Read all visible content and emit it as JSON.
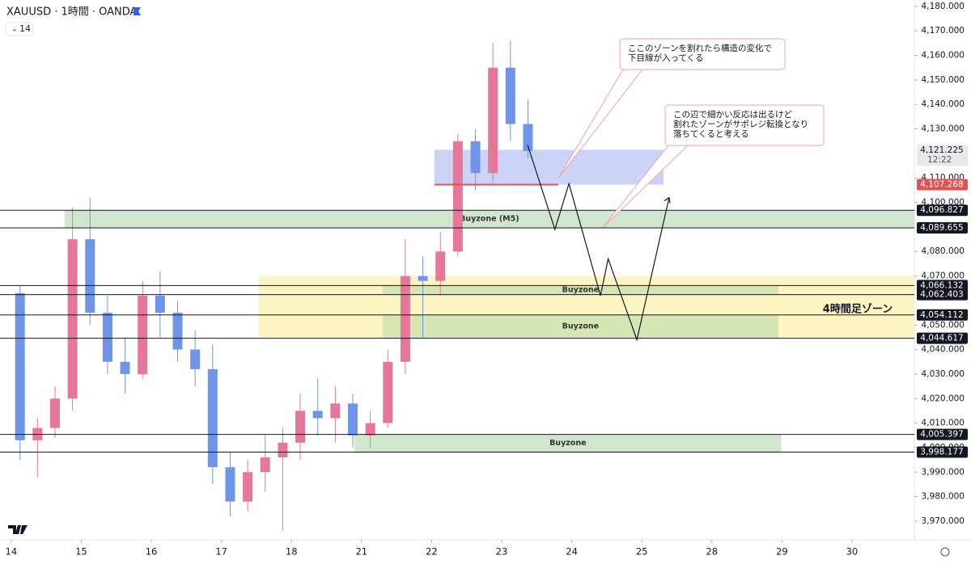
{
  "chart_data": {
    "type": "candlestick",
    "title": "XAUUSD · 1時間 · OANDA",
    "input_label": "14",
    "up_color": "#e5779a",
    "down_color": "#6f95e8",
    "x": [
      0.125,
      0.375,
      0.625,
      0.875,
      1.125,
      1.375,
      1.625,
      1.875,
      2.125,
      2.375,
      2.625,
      2.875,
      3.125,
      3.375,
      3.625,
      3.875,
      4.125,
      4.375,
      4.625,
      4.875,
      5.125,
      5.375,
      5.625,
      5.875,
      6.125,
      6.375,
      6.625,
      6.875,
      7.125,
      7.375
    ],
    "open": [
      4063,
      4003,
      4008,
      4020,
      4085,
      4055,
      4035,
      4030,
      4062,
      4055,
      4040,
      4032,
      3992,
      3978,
      3990,
      3996,
      4002,
      4015,
      4012,
      4018,
      4005,
      4010,
      4035,
      4070,
      4068,
      4080,
      4125,
      4112,
      4155,
      4132
    ],
    "high": [
      4066,
      4012,
      4025,
      4098,
      4102,
      4062,
      4045,
      4068,
      4072,
      4060,
      4048,
      4042,
      3998,
      3995,
      4005,
      4008,
      4022,
      4028,
      4025,
      4022,
      4015,
      4040,
      4085,
      4078,
      4088,
      4128,
      4130,
      4165,
      4166,
      4142
    ],
    "low": [
      3995,
      3988,
      4004,
      4015,
      4050,
      4030,
      4022,
      4028,
      4045,
      4035,
      4025,
      3985,
      3972,
      3974,
      3982,
      3966,
      3995,
      4005,
      4002,
      4000,
      4000,
      4008,
      4030,
      4045,
      4062,
      4078,
      4105,
      4108,
      4125,
      4118
    ],
    "close": [
      4003,
      4008,
      4020,
      4085,
      4055,
      4035,
      4030,
      4062,
      4055,
      4040,
      4032,
      3992,
      3978,
      3990,
      3996,
      4002,
      4015,
      4012,
      4018,
      4005,
      4010,
      4035,
      4070,
      4068,
      4080,
      4125,
      4112,
      4155,
      4132,
      4121
    ],
    "xlim": [
      -0.16,
      12.89
    ],
    "ylim": [
      3962.4,
      4182.6
    ],
    "xticks": [
      {
        "value": 0,
        "label": "14"
      },
      {
        "value": 1,
        "label": "15"
      },
      {
        "value": 2,
        "label": "16"
      },
      {
        "value": 3,
        "label": "17"
      },
      {
        "value": 4,
        "label": "18"
      },
      {
        "value": 5,
        "label": "21"
      },
      {
        "value": 6,
        "label": "22"
      },
      {
        "value": 7,
        "label": "23"
      },
      {
        "value": 8,
        "label": "24"
      },
      {
        "value": 9,
        "label": "25"
      },
      {
        "value": 10,
        "label": "28"
      },
      {
        "value": 11,
        "label": "29"
      },
      {
        "value": 12,
        "label": "30"
      }
    ],
    "yticks": [
      {
        "value": 4180,
        "label": "4,180.000"
      },
      {
        "value": 4170,
        "label": "4,170.000"
      },
      {
        "value": 4160,
        "label": "4,160.000"
      },
      {
        "value": 4150,
        "label": "4,150.000"
      },
      {
        "value": 4140,
        "label": "4,140.000"
      },
      {
        "value": 4130,
        "label": "4,130.000"
      },
      {
        "value": 4110,
        "label": "4,110.000"
      },
      {
        "value": 4100,
        "label": "4,100.000"
      },
      {
        "value": 4080,
        "label": "4,080.000"
      },
      {
        "value": 4070,
        "label": "4,070.000"
      },
      {
        "value": 4050,
        "label": "4,050.000"
      },
      {
        "value": 4040,
        "label": "4,040.000"
      },
      {
        "value": 4030,
        "label": "4,030.000"
      },
      {
        "value": 4020,
        "label": "4,020.000"
      },
      {
        "value": 4010,
        "label": "4,010.000"
      },
      {
        "value": 4000,
        "label": "4,000.000"
      },
      {
        "value": 3990,
        "label": "3,990.000"
      },
      {
        "value": 3980,
        "label": "3,980.000"
      },
      {
        "value": 3970,
        "label": "3,970.000"
      }
    ],
    "zones": [
      {
        "color": "#fbf3b8",
        "x_start": 3.53,
        "x_end": 12.89,
        "top": 4070,
        "bottom": 4044.617
      },
      {
        "name": "Buyzone (M5)",
        "color": "#c9e3c4",
        "x_start": 0.76,
        "x_end": 12.89,
        "top": 4096.827,
        "bottom": 4089.655
      },
      {
        "name": "Buyzone",
        "color": "#cfe3b0",
        "x_start": 5.3,
        "x_end": 10.95,
        "top": 4066.132,
        "bottom": 4062.403
      },
      {
        "name": "Buyzone",
        "color": "#cfe3b0",
        "x_start": 5.3,
        "x_end": 10.95,
        "top": 4054.112,
        "bottom": 4044.617
      },
      {
        "name": "Buyzone",
        "color": "#c9e3c4",
        "x_start": 4.9,
        "x_end": 10.99,
        "top": 4005.397,
        "bottom": 3998.177
      },
      {
        "color": "#c2ccf5",
        "x_start": 6.04,
        "x_end": 9.31,
        "top": 4121.5,
        "bottom": 4107.268
      }
    ],
    "levels": [
      {
        "value": 4096.827,
        "label": "4,096.827"
      },
      {
        "value": 4089.655,
        "label": "4,089.655"
      },
      {
        "value": 4066.132,
        "label": "4,066.132"
      },
      {
        "value": 4062.403,
        "label": "4,062.403"
      },
      {
        "value": 4054.112,
        "label": "4,054.112"
      },
      {
        "value": 4044.617,
        "label": "4,044.617"
      },
      {
        "value": 4005.397,
        "label": "4,005.397"
      },
      {
        "value": 3998.177,
        "label": "3,998.177"
      }
    ],
    "support_line": {
      "value": 4107.268,
      "label": "4,107.268",
      "color": "#e05252",
      "x_start": 6.04,
      "x_end": 7.81
    },
    "last_price": {
      "value": 4121.225,
      "label": "4,121.225",
      "countdown": "12:22"
    },
    "projection": {
      "x": [
        7.37,
        7.76,
        7.96,
        8.41,
        8.52,
        8.93,
        9.39
      ],
      "values": [
        4123.5,
        4089,
        4107.7,
        4062,
        4077,
        4044,
        4102
      ]
    },
    "zone_note": "4時間足ゾーン",
    "annotations": [
      {
        "lines": [
          "ここのゾーンを割れたら構造の変化で",
          "下目線が入ってくる"
        ],
        "x": 7.81,
        "value": 4110
      },
      {
        "lines": [
          "この辺で細かい反応は出るけど",
          "割れたゾーンがサポレジ転換となり",
          "落ちてくると考える"
        ],
        "x": 8.45,
        "value": 4090
      }
    ]
  }
}
